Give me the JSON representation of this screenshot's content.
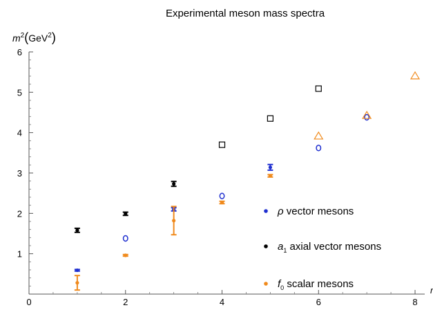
{
  "chart_data": {
    "type": "scatter",
    "title": "Experimental meson mass spectra",
    "ylabel": "m2(GeV2)",
    "ylabel_parts": {
      "var": "m",
      "exp": "2",
      "open": "(",
      "unit": "GeV",
      "unit_exp": "2",
      "close": ")"
    },
    "xlabel": "n",
    "xlim": [
      0,
      8.2
    ],
    "ylim": [
      0,
      6
    ],
    "x_ticks": [
      0,
      2,
      4,
      6,
      8
    ],
    "y_ticks": [
      1,
      2,
      3,
      4,
      5,
      6
    ],
    "grid": false,
    "legend_position": "bottom-right",
    "series": [
      {
        "name": "ρ vector mesons",
        "legend_parts": {
          "symbol": "ρ",
          "sub": "",
          "text": " vector mesons"
        },
        "color": "#1f2fd0",
        "points": [
          {
            "x": 1,
            "y": 0.59,
            "err": 0.02,
            "kind": "measured"
          },
          {
            "x": 2,
            "y": 1.38,
            "kind": "open-circle"
          },
          {
            "x": 3,
            "y": 2.1,
            "err": 0.04,
            "kind": "measured"
          },
          {
            "x": 4,
            "y": 2.43,
            "kind": "open-circle"
          },
          {
            "x": 5,
            "y": 3.14,
            "err": 0.07,
            "kind": "measured"
          },
          {
            "x": 6,
            "y": 3.62,
            "kind": "open-circle"
          },
          {
            "x": 7,
            "y": 4.38,
            "kind": "open-circle"
          }
        ]
      },
      {
        "name": "a1 axial vector mesons",
        "legend_parts": {
          "symbol": "a",
          "sub": "1",
          "text": " axial vector mesons"
        },
        "color": "#000000",
        "points": [
          {
            "x": 1,
            "y": 1.58,
            "err": 0.05,
            "kind": "measured"
          },
          {
            "x": 2,
            "y": 1.99,
            "err": 0.04,
            "kind": "measured"
          },
          {
            "x": 3,
            "y": 2.73,
            "err": 0.06,
            "kind": "measured"
          },
          {
            "x": 4,
            "y": 3.7,
            "kind": "open-square"
          },
          {
            "x": 5,
            "y": 4.35,
            "kind": "open-square"
          },
          {
            "x": 6,
            "y": 5.09,
            "kind": "open-square"
          }
        ]
      },
      {
        "name": "f0 scalar mesons",
        "legend_parts": {
          "symbol": "f",
          "sub": "0",
          "text": " scalar mesons"
        },
        "color": "#f08a1c",
        "points": [
          {
            "x": 1,
            "y": 0.28,
            "err_low": 0.18,
            "err_high": 0.18,
            "kind": "measured"
          },
          {
            "x": 2,
            "y": 0.96,
            "err": 0.02,
            "kind": "measured"
          },
          {
            "x": 3,
            "y": 1.82,
            "err_low": 0.35,
            "err_high": 0.35,
            "kind": "measured"
          },
          {
            "x": 4,
            "y": 2.27,
            "err": 0.03,
            "kind": "measured"
          },
          {
            "x": 5,
            "y": 2.93,
            "err": 0.03,
            "kind": "measured"
          },
          {
            "x": 6,
            "y": 3.91,
            "kind": "open-triangle"
          },
          {
            "x": 7,
            "y": 4.42,
            "kind": "open-triangle"
          },
          {
            "x": 8,
            "y": 5.4,
            "kind": "open-triangle"
          }
        ]
      }
    ]
  }
}
